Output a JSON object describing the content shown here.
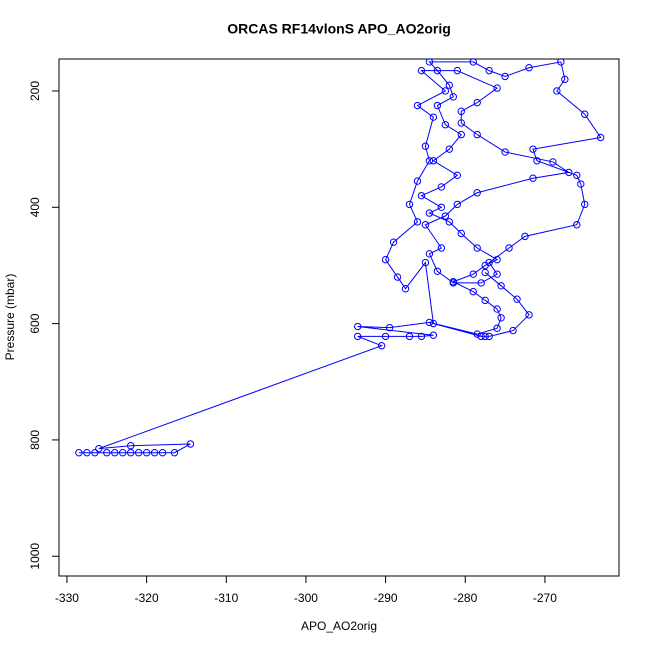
{
  "chart_data": {
    "type": "line",
    "title": "ORCAS RF14vlonS APO_AO2orig",
    "x_label": "APO_AO2orig",
    "y_label": "Pressure (mbar)",
    "color": "#0000ff",
    "xlim": [
      -331,
      -260.7
    ],
    "xticks": [
      -330,
      -320,
      -310,
      -300,
      -290,
      -280,
      -270
    ],
    "ylim": [
      1034,
      145
    ],
    "yticks": [
      200,
      400,
      600,
      800,
      1000
    ],
    "x": [
      -328.5,
      -327.5,
      -326.5,
      -325,
      -324,
      -323,
      -322,
      -321,
      -320,
      -319,
      -318,
      -316.5,
      -314.5,
      -322,
      -326,
      -290.5,
      -293.5,
      -290,
      -287,
      -285.5,
      -284,
      -293.5,
      -289.5,
      -284.5,
      -278.5,
      -276,
      -275.5,
      -276,
      -277.5,
      -279,
      -281.5,
      -279,
      -277.5,
      -276,
      -278.5,
      -280.5,
      -282,
      -284.5,
      -283,
      -285.5,
      -283,
      -281,
      -284,
      -282,
      -280.5,
      -282.5,
      -283.5,
      -281.5,
      -282,
      -283.5,
      -284.5,
      -279,
      -277,
      -275,
      -272,
      -268,
      -267.5,
      -268.5,
      -265,
      -263,
      -271.5,
      -271,
      -266,
      -265.5,
      -265,
      -266,
      -272.5,
      -274.5,
      -277,
      -276,
      -278,
      -281.5,
      -283.5,
      -284.5,
      -283,
      -285,
      -282.5,
      -281,
      -278.5,
      -271.5,
      -267,
      -269,
      -275,
      -278.5,
      -280.5,
      -280.5,
      -278.5,
      -276,
      -281,
      -285.5,
      -282.5,
      -286,
      -284,
      -285,
      -284.5,
      -286,
      -287,
      -286,
      -289,
      -290,
      -288.5,
      -287.5,
      -285,
      -284,
      -278,
      -277.5,
      -277,
      -274,
      -272,
      -273.5,
      -275.5,
      -277.5
    ],
    "values": [
      822,
      822,
      822,
      822,
      822,
      822,
      822,
      822,
      822,
      822,
      822,
      822,
      807,
      810,
      815,
      638,
      622,
      622,
      622,
      622,
      620,
      605,
      607,
      598,
      618,
      608,
      590,
      575,
      560,
      545,
      528,
      515,
      500,
      490,
      470,
      445,
      425,
      410,
      400,
      380,
      365,
      345,
      320,
      300,
      275,
      258,
      225,
      210,
      190,
      165,
      150,
      150,
      165,
      175,
      160,
      150,
      180,
      200,
      240,
      280,
      300,
      320,
      345,
      360,
      395,
      430,
      450,
      470,
      495,
      515,
      530,
      530,
      510,
      480,
      470,
      430,
      415,
      395,
      375,
      350,
      340,
      322,
      305,
      275,
      255,
      235,
      220,
      195,
      165,
      165,
      200,
      225,
      245,
      295,
      320,
      355,
      395,
      425,
      460,
      490,
      520,
      540,
      495,
      600,
      622,
      622,
      622,
      612,
      585,
      558,
      535,
      512
    ]
  }
}
